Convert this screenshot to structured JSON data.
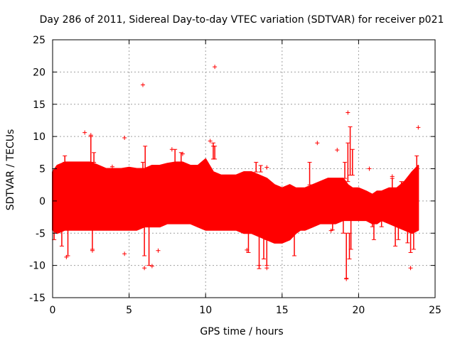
{
  "chart_data": {
    "type": "scatter",
    "title": "Day 286 of 2011, Sidereal Day-to-day VTEC variation (SDTVAR) for receiver p021",
    "xlabel": "GPS time / hours",
    "ylabel": "SDTVAR / TECUs",
    "xlim": [
      0,
      25
    ],
    "ylim": [
      -15,
      25
    ],
    "xticks": [
      0,
      5,
      10,
      15,
      20,
      25
    ],
    "yticks": [
      -15,
      -10,
      -5,
      0,
      5,
      10,
      15,
      20,
      25
    ],
    "grid": true,
    "series_color": "#ff0000",
    "band": {
      "x": [
        0.0,
        0.3,
        0.8,
        1.5,
        2.0,
        2.5,
        3.0,
        3.5,
        4.0,
        4.5,
        5.0,
        5.5,
        6.0,
        6.5,
        7.0,
        7.5,
        8.0,
        8.5,
        9.0,
        9.5,
        10.0,
        10.5,
        11.0,
        11.5,
        12.0,
        12.5,
        13.0,
        13.5,
        14.0,
        14.5,
        15.0,
        15.5,
        15.9,
        16.2,
        16.5,
        17.0,
        17.5,
        18.0,
        18.5,
        19.0,
        19.3,
        19.6,
        20.0,
        20.5,
        20.9,
        21.2,
        21.5,
        22.0,
        22.5,
        23.0,
        23.5,
        23.9
      ],
      "upper": [
        4.5,
        5.5,
        6.0,
        6.0,
        6.0,
        6.0,
        5.5,
        5.0,
        5.0,
        5.0,
        5.2,
        5.0,
        5.0,
        5.5,
        5.5,
        5.8,
        6.0,
        6.0,
        5.5,
        5.5,
        6.5,
        4.5,
        4.0,
        4.0,
        4.0,
        4.5,
        4.5,
        4.0,
        3.5,
        2.5,
        2.0,
        2.5,
        2.0,
        2.0,
        2.0,
        2.5,
        3.0,
        3.5,
        3.5,
        3.5,
        2.5,
        2.0,
        2.0,
        1.5,
        1.0,
        1.5,
        1.5,
        2.0,
        2.0,
        3.0,
        4.5,
        5.5
      ],
      "lower": [
        -4.5,
        -5.0,
        -4.5,
        -4.5,
        -4.5,
        -4.5,
        -4.5,
        -4.5,
        -4.5,
        -4.5,
        -4.5,
        -4.5,
        -4.0,
        -4.0,
        -4.0,
        -3.5,
        -3.5,
        -3.5,
        -3.5,
        -4.0,
        -4.5,
        -4.5,
        -4.5,
        -4.5,
        -4.5,
        -5.0,
        -5.0,
        -5.5,
        -6.0,
        -6.5,
        -6.5,
        -6.0,
        -5.0,
        -4.5,
        -4.5,
        -4.0,
        -3.5,
        -3.5,
        -3.5,
        -3.0,
        -3.0,
        -3.0,
        -3.0,
        -3.0,
        -3.5,
        -3.5,
        -3.0,
        -3.5,
        -4.0,
        -4.5,
        -5.0,
        -4.5
      ]
    },
    "spikes": [
      {
        "x": 0.1,
        "y1": -6.0,
        "y2": 5.0
      },
      {
        "x": 0.6,
        "y1": -7.0,
        "y2": 5.5
      },
      {
        "x": 0.8,
        "y1": 6.0,
        "y2": 7.0
      },
      {
        "x": 1.0,
        "y1": -8.5,
        "y2": -4.5
      },
      {
        "x": 2.5,
        "y1": 6.0,
        "y2": 10.0
      },
      {
        "x": 2.6,
        "y1": -7.5,
        "y2": -4.5
      },
      {
        "x": 2.7,
        "y1": 6.0,
        "y2": 7.5
      },
      {
        "x": 5.9,
        "y1": 5.0,
        "y2": 6.0
      },
      {
        "x": 6.0,
        "y1": -8.5,
        "y2": -4.0
      },
      {
        "x": 6.05,
        "y1": 5.0,
        "y2": 8.5
      },
      {
        "x": 6.3,
        "y1": -10.0,
        "y2": -4.0
      },
      {
        "x": 8.0,
        "y1": 6.0,
        "y2": 8.0
      },
      {
        "x": 8.4,
        "y1": 6.0,
        "y2": 7.5
      },
      {
        "x": 10.5,
        "y1": 6.5,
        "y2": 9.0
      },
      {
        "x": 10.6,
        "y1": 6.5,
        "y2": 8.5
      },
      {
        "x": 12.8,
        "y1": -8.0,
        "y2": -4.5
      },
      {
        "x": 13.3,
        "y1": 4.5,
        "y2": 6.0
      },
      {
        "x": 13.5,
        "y1": -10.5,
        "y2": -5.0
      },
      {
        "x": 13.6,
        "y1": 4.5,
        "y2": 5.5
      },
      {
        "x": 13.8,
        "y1": -9.0,
        "y2": -5.0
      },
      {
        "x": 14.0,
        "y1": -10.0,
        "y2": -6.0
      },
      {
        "x": 15.8,
        "y1": -8.5,
        "y2": -5.0
      },
      {
        "x": 16.8,
        "y1": 2.5,
        "y2": 6.0
      },
      {
        "x": 18.3,
        "y1": -4.5,
        "y2": -3.0
      },
      {
        "x": 19.0,
        "y1": -5.0,
        "y2": -3.0
      },
      {
        "x": 19.1,
        "y1": 3.5,
        "y2": 6.0
      },
      {
        "x": 19.2,
        "y1": -12.0,
        "y2": -5.0
      },
      {
        "x": 19.3,
        "y1": 3.0,
        "y2": 9.0
      },
      {
        "x": 19.4,
        "y1": -9.0,
        "y2": -5.0
      },
      {
        "x": 19.45,
        "y1": 4.0,
        "y2": 11.5
      },
      {
        "x": 19.5,
        "y1": -7.5,
        "y2": -3.0
      },
      {
        "x": 19.6,
        "y1": 4.0,
        "y2": 8.0
      },
      {
        "x": 20.9,
        "y1": -4.0,
        "y2": -2.5
      },
      {
        "x": 21.0,
        "y1": -6.0,
        "y2": -3.0
      },
      {
        "x": 21.5,
        "y1": -4.0,
        "y2": -3.0
      },
      {
        "x": 22.2,
        "y1": 1.5,
        "y2": 3.5
      },
      {
        "x": 22.4,
        "y1": -7.0,
        "y2": -3.5
      },
      {
        "x": 22.6,
        "y1": -6.0,
        "y2": -3.5
      },
      {
        "x": 22.8,
        "y1": 1.5,
        "y2": 3.0
      },
      {
        "x": 23.2,
        "y1": -6.5,
        "y2": -4.0
      },
      {
        "x": 23.4,
        "y1": -8.0,
        "y2": -4.5
      },
      {
        "x": 23.6,
        "y1": -7.5,
        "y2": -4.5
      },
      {
        "x": 23.8,
        "y1": 5.0,
        "y2": 7.0
      }
    ],
    "outliers": [
      {
        "x": 5.9,
        "y": 18.0
      },
      {
        "x": 10.6,
        "y": 20.8
      },
      {
        "x": 19.3,
        "y": 13.7
      },
      {
        "x": 23.9,
        "y": 11.4
      },
      {
        "x": 2.1,
        "y": 10.6
      },
      {
        "x": 2.5,
        "y": 10.2
      },
      {
        "x": 4.7,
        "y": 9.8
      },
      {
        "x": 10.3,
        "y": 9.3
      },
      {
        "x": 17.3,
        "y": 9.0
      },
      {
        "x": 18.6,
        "y": 7.9
      },
      {
        "x": 10.5,
        "y": 8.5
      },
      {
        "x": 7.8,
        "y": 8.0
      },
      {
        "x": 8.5,
        "y": 7.3
      },
      {
        "x": 20.7,
        "y": 5.0
      },
      {
        "x": 22.2,
        "y": 3.8
      },
      {
        "x": 3.9,
        "y": 5.3
      },
      {
        "x": 14.0,
        "y": 5.2
      },
      {
        "x": 4.7,
        "y": -8.2
      },
      {
        "x": 6.0,
        "y": -10.4
      },
      {
        "x": 6.5,
        "y": -10.1
      },
      {
        "x": 6.9,
        "y": -7.7
      },
      {
        "x": 2.6,
        "y": -7.7
      },
      {
        "x": 0.9,
        "y": -8.7
      },
      {
        "x": 13.5,
        "y": -10.0
      },
      {
        "x": 14.0,
        "y": -10.4
      },
      {
        "x": 19.2,
        "y": -12.1
      },
      {
        "x": 23.4,
        "y": -10.4
      },
      {
        "x": 18.2,
        "y": -4.6
      },
      {
        "x": 12.7,
        "y": -7.6
      }
    ]
  }
}
